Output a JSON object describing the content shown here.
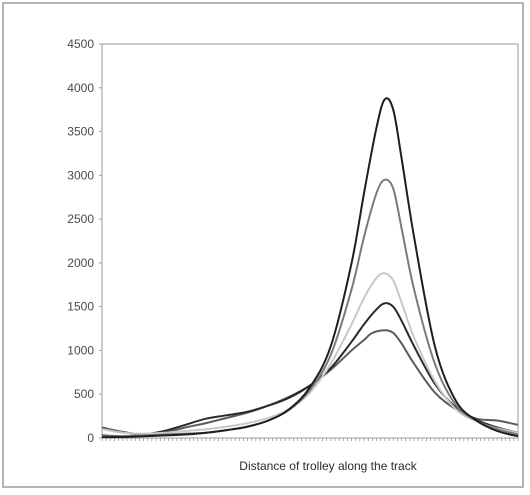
{
  "chart_data": {
    "type": "line",
    "title": "",
    "xlabel": "Distance of trolley along the track",
    "ylabel": "",
    "x_range": [
      0,
      100
    ],
    "ylim": [
      0,
      4500
    ],
    "yticks": [
      0,
      500,
      1000,
      1500,
      2000,
      2500,
      3000,
      3500,
      4000,
      4500
    ],
    "ytick_labels": [
      "0",
      "500",
      "1000",
      "1500",
      "2000",
      "2500",
      "3000",
      "3500",
      "4000",
      "4500"
    ],
    "grid": false,
    "legend": false,
    "series": [
      {
        "color": "#5a5a5a",
        "x": [
          0,
          5,
          10,
          15,
          20,
          25,
          30,
          35,
          40,
          45,
          50,
          55,
          60,
          63,
          65,
          68,
          70,
          72,
          75,
          80,
          85,
          90,
          95,
          100
        ],
        "y": [
          120,
          70,
          40,
          60,
          120,
          170,
          230,
          290,
          370,
          470,
          600,
          780,
          1000,
          1120,
          1200,
          1230,
          1200,
          1080,
          850,
          520,
          330,
          220,
          200,
          150
        ]
      },
      {
        "color": "#2a2a2a",
        "x": [
          0,
          5,
          10,
          15,
          20,
          25,
          30,
          35,
          40,
          45,
          50,
          55,
          60,
          63,
          66,
          68,
          70,
          72,
          75,
          80,
          85,
          90,
          95,
          100
        ],
        "y": [
          30,
          20,
          40,
          80,
          150,
          220,
          260,
          300,
          370,
          460,
          600,
          800,
          1100,
          1300,
          1470,
          1540,
          1500,
          1340,
          1050,
          620,
          350,
          210,
          120,
          60
        ]
      },
      {
        "color": "#c8c8c8",
        "x": [
          0,
          5,
          10,
          15,
          20,
          25,
          30,
          35,
          40,
          45,
          50,
          55,
          60,
          63,
          66,
          68,
          70,
          72,
          75,
          80,
          85,
          90,
          95,
          100
        ],
        "y": [
          100,
          60,
          50,
          60,
          80,
          100,
          130,
          170,
          230,
          330,
          520,
          850,
          1300,
          1600,
          1830,
          1880,
          1800,
          1550,
          1150,
          650,
          330,
          190,
          110,
          60
        ]
      },
      {
        "color": "#7a7a7a",
        "x": [
          0,
          5,
          10,
          15,
          20,
          25,
          30,
          35,
          40,
          45,
          50,
          55,
          60,
          63,
          66,
          68,
          70,
          72,
          75,
          80,
          85,
          90,
          95,
          100
        ],
        "y": [
          20,
          20,
          30,
          40,
          50,
          60,
          90,
          130,
          200,
          320,
          550,
          950,
          1700,
          2300,
          2800,
          2950,
          2850,
          2400,
          1700,
          850,
          380,
          200,
          100,
          40
        ]
      },
      {
        "color": "#1e1e1e",
        "x": [
          0,
          5,
          10,
          15,
          20,
          25,
          30,
          35,
          40,
          45,
          50,
          55,
          60,
          63,
          66,
          68,
          70,
          72,
          75,
          80,
          85,
          90,
          95,
          100
        ],
        "y": [
          10,
          10,
          20,
          30,
          40,
          60,
          90,
          130,
          200,
          330,
          580,
          1050,
          2000,
          2800,
          3550,
          3870,
          3750,
          3200,
          2300,
          1050,
          430,
          200,
          80,
          20
        ]
      }
    ]
  }
}
